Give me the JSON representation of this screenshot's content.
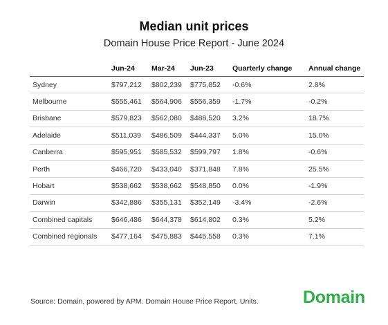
{
  "chart_data": {
    "type": "table",
    "title": "Median unit prices",
    "subtitle": "Domain House Price Report - June 2024",
    "columns": [
      "",
      "Jun-24",
      "Mar-24",
      "Jun-23",
      "Quarterly change",
      "Annual change"
    ],
    "rows": [
      [
        "Sydney",
        "$797,212",
        "$802,239",
        "$775,852",
        "-0.6%",
        "2.8%"
      ],
      [
        "Melbourne",
        "$555,461",
        "$564,906",
        "$556,359",
        "-1.7%",
        "-0.2%"
      ],
      [
        "Brisbane",
        "$579,823",
        "$562,080",
        "$488,520",
        "3.2%",
        "18.7%"
      ],
      [
        "Adelaide",
        "$511,039",
        "$486,509",
        "$444,337",
        "5.0%",
        "15.0%"
      ],
      [
        "Canberra",
        "$595,951",
        "$585,532",
        "$599,797",
        "1.8%",
        "-0.6%"
      ],
      [
        "Perth",
        "$466,720",
        "$433,040",
        "$371,848",
        "7.8%",
        "25.5%"
      ],
      [
        "Hobart",
        "$538,662",
        "$538,662",
        "$548,850",
        "0.0%",
        "-1.9%"
      ],
      [
        "Darwin",
        "$342,886",
        "$355,131",
        "$352,149",
        "-3.4%",
        "-2.6%"
      ],
      [
        "Combined capitals",
        "$646,486",
        "$644,378",
        "$614,802",
        "0.3%",
        "5.2%"
      ],
      [
        "Combined regionals",
        "$477,164",
        "$475,883",
        "$445,558",
        "0.3%",
        "7.1%"
      ]
    ]
  },
  "source": "Source: Domain, powered by APM. Domain House Price Report, Units.",
  "logo": {
    "text": "Domain",
    "color": "#2fb04a"
  }
}
